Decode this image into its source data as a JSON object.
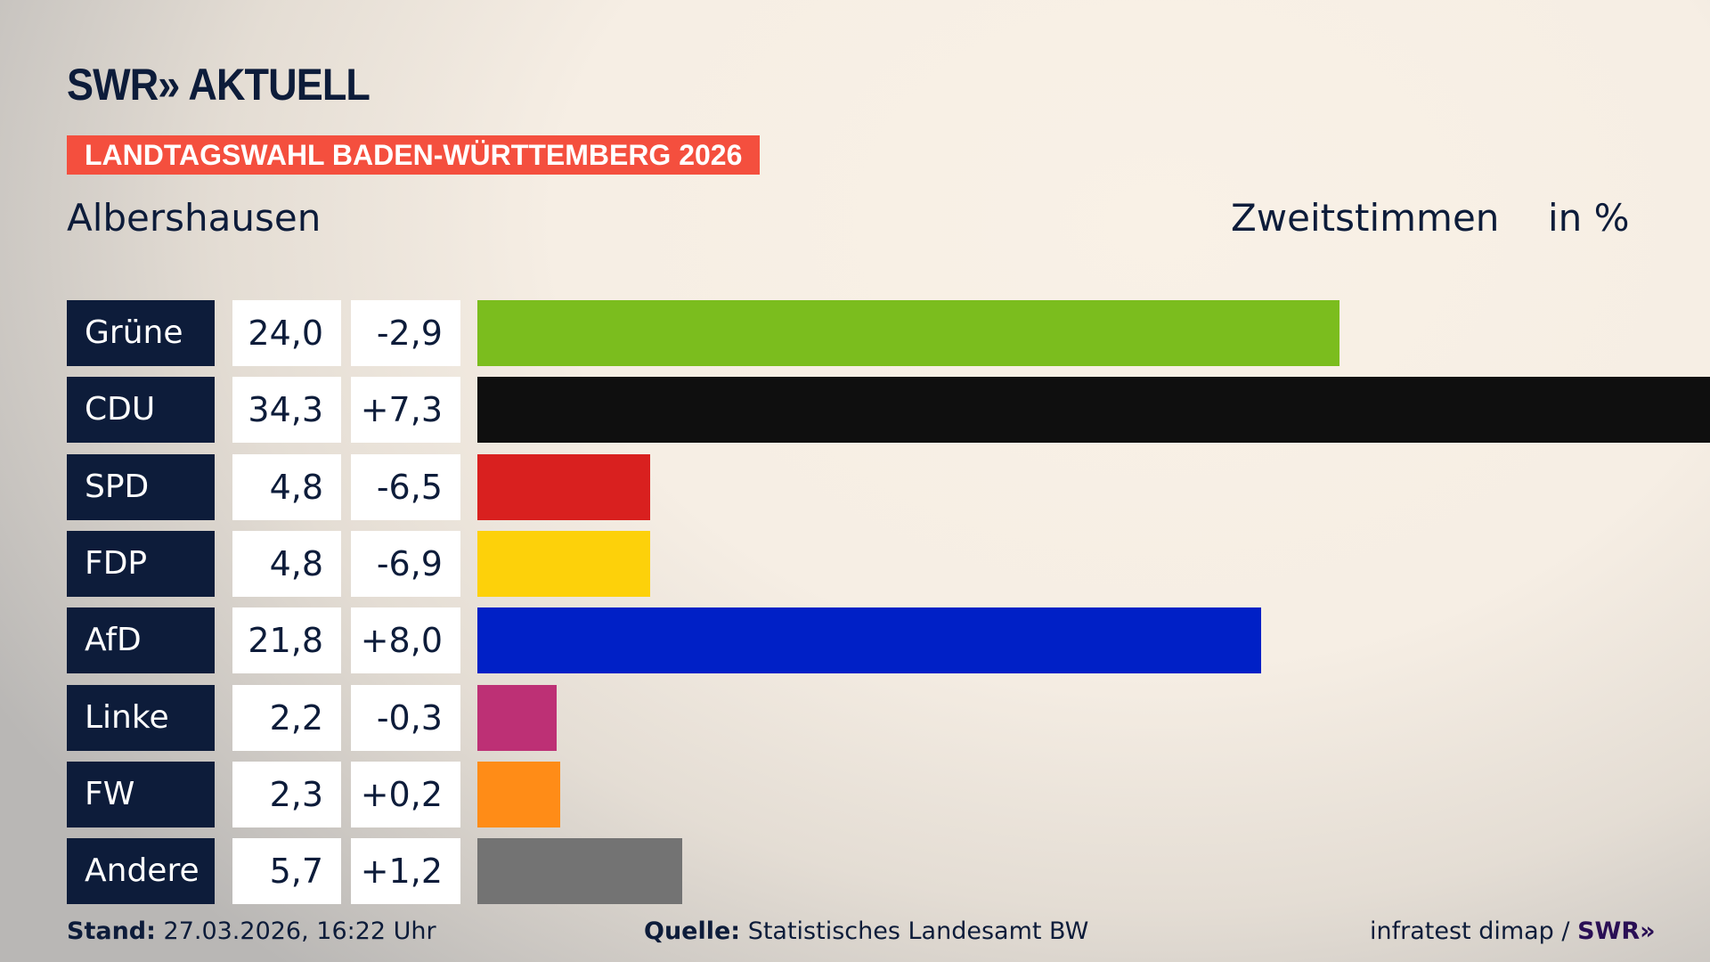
{
  "header": {
    "logo": "SWR» AKTUELL",
    "banner": "LANDTAGSWAHL BADEN-WÜRTTEMBERG 2026",
    "region": "Albershausen",
    "measure": "Zweitstimmen",
    "unit": "in %"
  },
  "chart_data": {
    "type": "bar",
    "orientation": "horizontal",
    "categories": [
      "Grüne",
      "CDU",
      "SPD",
      "FDP",
      "AfD",
      "Linke",
      "FW",
      "Andere"
    ],
    "values": [
      24.0,
      34.3,
      4.8,
      4.8,
      21.8,
      2.2,
      2.3,
      5.7
    ],
    "value_labels": [
      "24,0",
      "34,3",
      "4,8",
      "4,8",
      "21,8",
      "2,2",
      "2,3",
      "5,7"
    ],
    "changes": [
      -2.9,
      7.3,
      -6.5,
      -6.9,
      8.0,
      -0.3,
      0.2,
      1.2
    ],
    "change_labels": [
      "-2,9",
      "+7,3",
      "-6,5",
      "-6,9",
      "+8,0",
      "-0,3",
      "+0,2",
      "+1,2"
    ],
    "colors": [
      "#7bbd1e",
      "#0f0f0f",
      "#d9201f",
      "#fdd10a",
      "#0020c6",
      "#bd3075",
      "#ff8c17",
      "#737373"
    ],
    "grid": false
  },
  "footer": {
    "stand_label": "Stand:",
    "stand_value": "27.03.2026, 16:22 Uhr",
    "source_label": "Quelle:",
    "source_value": "Statistisches Landesamt BW",
    "credit": "infratest dimap /",
    "credit_logo": "SWR»"
  }
}
